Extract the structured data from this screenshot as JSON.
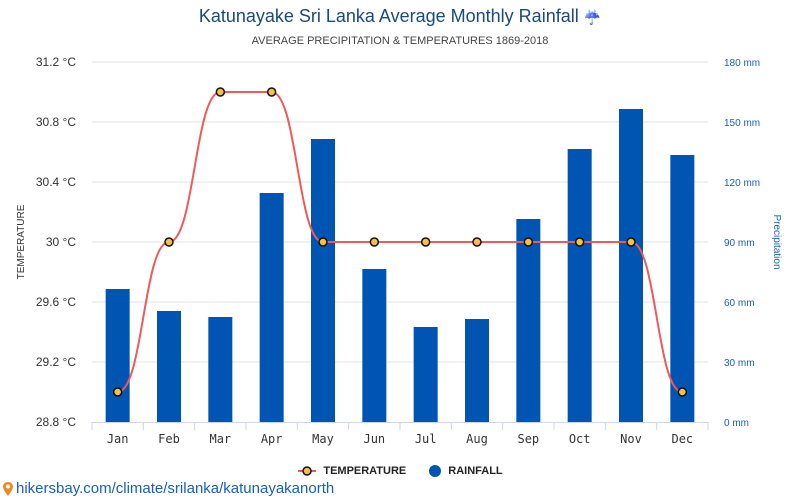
{
  "header": {
    "title": "Katunayake Sri Lanka Average Monthly Rainfall",
    "title_icon": "umbrella-rain-icon",
    "title_icon_glyph": "☔",
    "subtitle": "AVERAGE PRECIPITATION & TEMPERATURES 1869-2018"
  },
  "legend": {
    "temperature_label": "TEMPERATURE",
    "rainfall_label": "RAINFALL"
  },
  "source": {
    "icon": "location-pin-icon",
    "text": "hikersbay.com/climate/srilanka/katunayakanorth"
  },
  "colors": {
    "bar": "#0055b3",
    "line": "#ee5a5a",
    "marker_fill": "#f5c04a",
    "marker_stroke": "#111111",
    "grid": "#e3e3e3",
    "title": "#1a4a7a",
    "right_axis": "#1a5eb8"
  },
  "chart_data": {
    "type": "bar",
    "title": "Katunayake Sri Lanka Average Monthly Rainfall",
    "subtitle": "AVERAGE PRECIPITATION & TEMPERATURES 1869-2018",
    "categories": [
      "Jan",
      "Feb",
      "Mar",
      "Apr",
      "May",
      "Jun",
      "Jul",
      "Aug",
      "Sep",
      "Oct",
      "Nov",
      "Dec"
    ],
    "series": [
      {
        "name": "RAINFALL",
        "type": "bar",
        "axis": "right",
        "unit": "mm",
        "values": [
          66.5,
          55.5,
          52.5,
          114.5,
          141.5,
          76.5,
          47.5,
          51.5,
          101.5,
          136.5,
          156.5,
          133.5
        ]
      },
      {
        "name": "TEMPERATURE",
        "type": "line",
        "axis": "left",
        "unit": "°C",
        "values": [
          29,
          30,
          31,
          31,
          30,
          30,
          30,
          30,
          30,
          30,
          30,
          29
        ]
      }
    ],
    "y_left": {
      "label": "TEMPERATURE",
      "ylim": [
        28.8,
        31.2
      ],
      "ticks": [
        "31.2 °C",
        "30.8 °C",
        "30.4 °C",
        "30 °C",
        "29.6 °C",
        "29.2 °C",
        "28.8 °C"
      ],
      "tick_values": [
        31.2,
        30.8,
        30.4,
        30,
        29.6,
        29.2,
        28.8
      ]
    },
    "y_right": {
      "label": "Precipitation",
      "ylim": [
        0,
        180
      ],
      "ticks": [
        "180 mm",
        "150 mm",
        "120 mm",
        "90 mm",
        "60 mm",
        "30 mm",
        "0 mm"
      ],
      "tick_values": [
        180,
        150,
        120,
        90,
        60,
        30,
        0
      ]
    },
    "grid": true,
    "legend_position": "bottom-center"
  }
}
